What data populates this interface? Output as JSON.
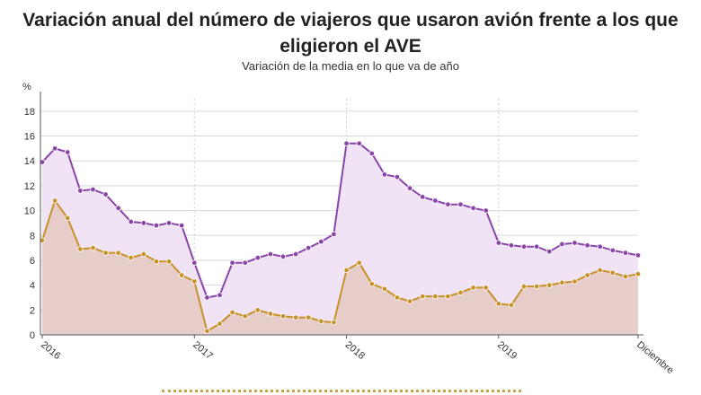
{
  "title": "Variación anual del número de viajeros que usaron avión frente a los que eligieron el AVE",
  "subtitle": "Variación de la media en lo que va de año",
  "colors": {
    "avion": "#8a45a8",
    "ave": "#c7922a",
    "avion_fill": "#f0e3f5",
    "ave_fill": "#e6cdca",
    "grid": "#d7d7d7"
  },
  "chart_data": {
    "type": "line",
    "title": "Variación anual del número de viajeros que usaron avión frente a los que eligieron el AVE",
    "subtitle": "Variación de la media en lo que va de año",
    "ylabel": "%",
    "ylim": [
      0,
      19
    ],
    "yticks": [
      0,
      2,
      4,
      6,
      8,
      10,
      12,
      14,
      16,
      18
    ],
    "xticks": [
      "2016",
      "2017",
      "2018",
      "2019",
      "Diciembre"
    ],
    "grid": true,
    "series": [
      {
        "values": [
          13.9,
          15.0,
          14.7,
          11.6,
          11.7,
          11.3,
          10.2,
          9.1,
          9.0,
          8.8,
          9.0,
          8.8,
          5.8,
          3.0,
          3.2,
          5.8,
          5.8,
          6.2,
          6.5,
          6.3,
          6.5,
          7.0,
          7.5,
          8.1,
          15.4,
          15.4,
          14.6,
          12.9,
          12.7,
          11.8,
          11.1,
          10.8,
          10.5,
          10.5,
          10.2,
          10.0,
          7.4,
          7.2,
          7.1,
          7.1,
          6.7,
          7.3,
          7.4,
          7.2,
          7.1,
          6.8,
          6.6,
          6.4
        ]
      },
      {
        "values": [
          7.6,
          10.8,
          9.4,
          6.9,
          7.0,
          6.6,
          6.6,
          6.2,
          6.5,
          5.9,
          5.9,
          4.8,
          4.3,
          0.3,
          0.9,
          1.8,
          1.5,
          2.0,
          1.7,
          1.5,
          1.4,
          1.4,
          1.1,
          1.0,
          5.2,
          5.8,
          4.1,
          3.7,
          3.0,
          2.7,
          3.1,
          3.1,
          3.1,
          3.4,
          3.8,
          3.8,
          2.5,
          2.4,
          3.9,
          3.9,
          4.0,
          4.2,
          4.3,
          4.8,
          5.2,
          5.0,
          4.7,
          4.9
        ]
      }
    ]
  }
}
